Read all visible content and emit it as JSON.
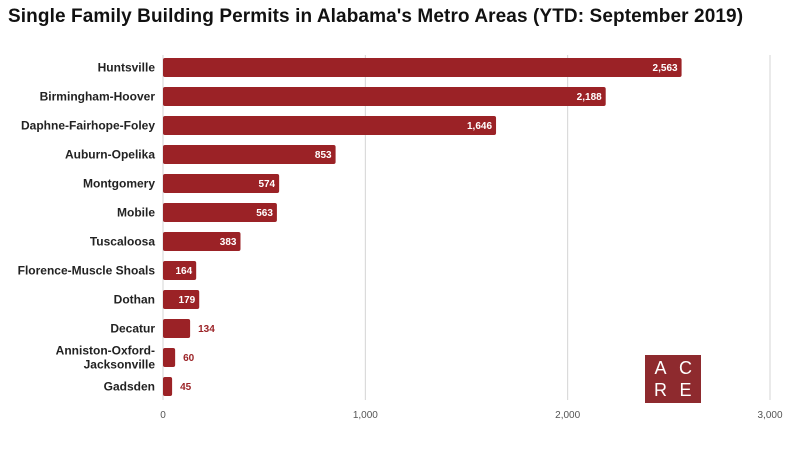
{
  "title": "Single Family Building Permits in Alabama's Metro Areas (YTD: September 2019)",
  "chart_data": {
    "type": "bar",
    "orientation": "horizontal",
    "title": "Single Family Building Permits in Alabama's Metro Areas (YTD: September 2019)",
    "categories": [
      "Huntsville",
      "Birmingham-Hoover",
      "Daphne-Fairhope-Foley",
      "Auburn-Opelika",
      "Montgomery",
      "Mobile",
      "Tuscaloosa",
      "Florence-Muscle Shoals",
      "Dothan",
      "Decatur",
      "Anniston-Oxford-Jacksonville",
      "Gadsden"
    ],
    "values": [
      2563,
      2188,
      1646,
      853,
      574,
      563,
      383,
      164,
      179,
      134,
      60,
      45
    ],
    "value_labels": [
      "2,563",
      "2,188",
      "1,646",
      "853",
      "574",
      "563",
      "383",
      "164",
      "179",
      "134",
      "60",
      "45"
    ],
    "xlim": [
      0,
      3000
    ],
    "x_ticks": [
      0,
      1000,
      2000,
      3000
    ],
    "x_tick_labels": [
      "0",
      "1,000",
      "2,000",
      "3,000"
    ],
    "grid": "vertical",
    "legend": "none",
    "colors": {
      "bar": "#9b2226",
      "bar_label_outside": "#9b2226"
    }
  },
  "logo": {
    "letters": [
      "A",
      "C",
      "R",
      "E"
    ],
    "color": "#8e2a2e"
  }
}
